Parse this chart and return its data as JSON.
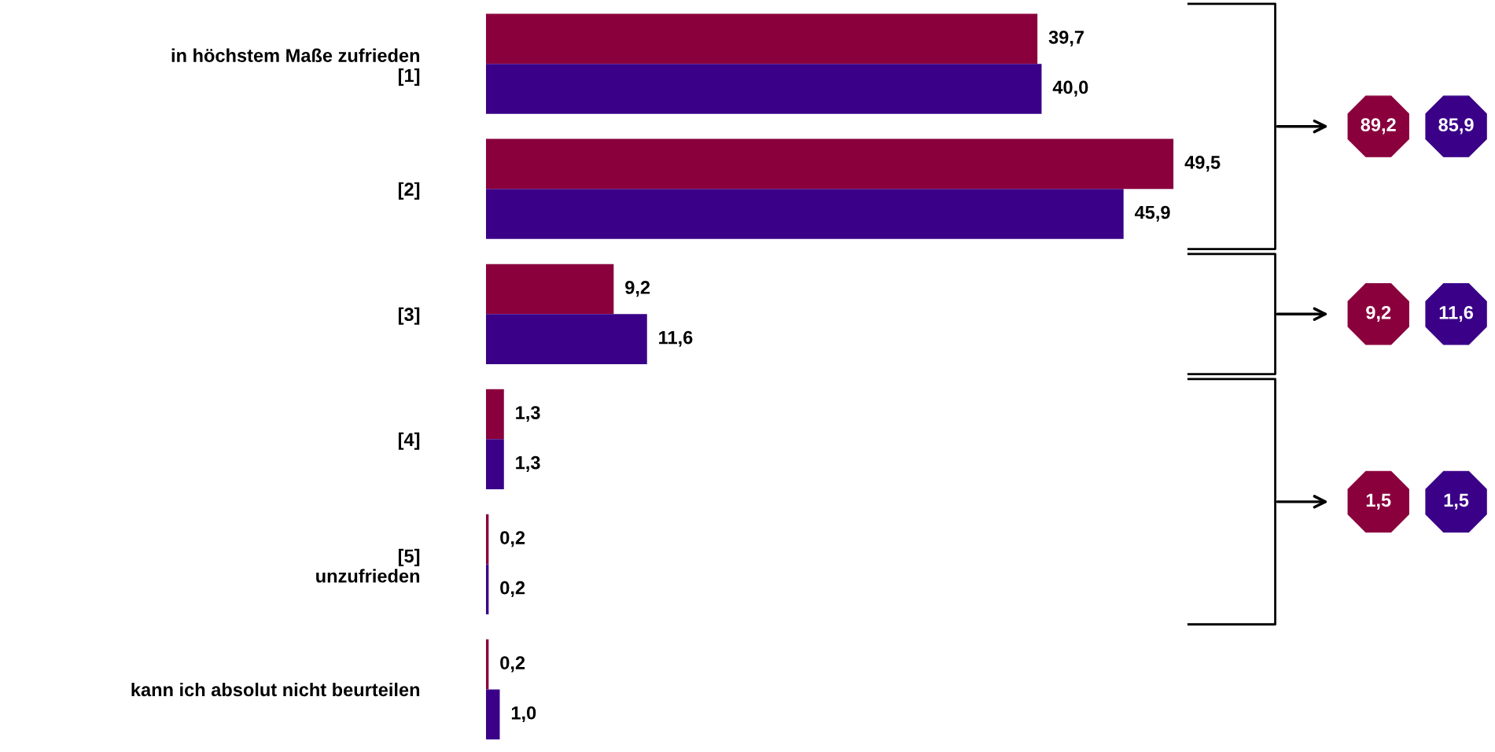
{
  "chart_data": {
    "type": "bar",
    "orientation": "horizontal",
    "categories": [
      "in höchstem Maße zufrieden\n[1]",
      "[2]",
      "[3]",
      "[4]",
      "[5]\nunzufrieden",
      "kann ich absolut nicht beurteilen"
    ],
    "series": [
      {
        "color": "#8a003c",
        "values": [
          39.7,
          49.5,
          9.2,
          1.3,
          0.2,
          0.2
        ],
        "value_labels": [
          "39,7",
          "49,5",
          "9,2",
          "1,3",
          "0,2",
          "0,2"
        ]
      },
      {
        "color": "#3a0088",
        "values": [
          40.0,
          45.9,
          11.6,
          1.3,
          0.2,
          1.0
        ],
        "value_labels": [
          "40,0",
          "45,9",
          "11,6",
          "1,3",
          "0,2",
          "1,0"
        ]
      }
    ],
    "annotations": [
      "89,2",
      "85,9",
      "9,2",
      "11,6",
      "1,5",
      "1,5"
    ],
    "grid": false,
    "legend": false
  }
}
